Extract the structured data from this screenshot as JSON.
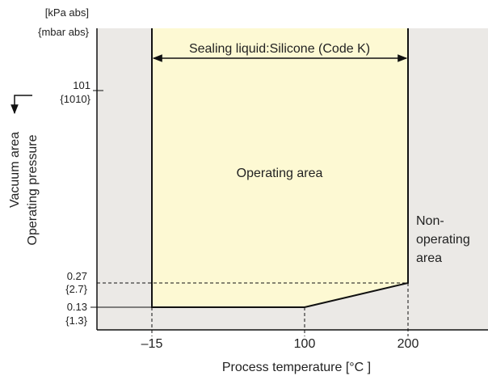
{
  "units": [
    "[kPa  abs]",
    "{mbar abs}"
  ],
  "y_axis": {
    "label": "Operating  pressure",
    "direction_label": "Vacuum area"
  },
  "y_ticks": [
    {
      "label": "101",
      "sub": "{1010}"
    },
    {
      "label": "0.27",
      "sub": "{2.7}"
    },
    {
      "label": "0.13",
      "sub": "{1.3}"
    }
  ],
  "x_axis": {
    "label": "Process temperature [°C ]"
  },
  "x_ticks": [
    "–15",
    "100",
    "200"
  ],
  "sealing_label": "Sealing liquid:Silicone (Code K)",
  "operating_label": "Operating area",
  "non_operating_label": [
    "Non-",
    "operating",
    "area"
  ]
}
